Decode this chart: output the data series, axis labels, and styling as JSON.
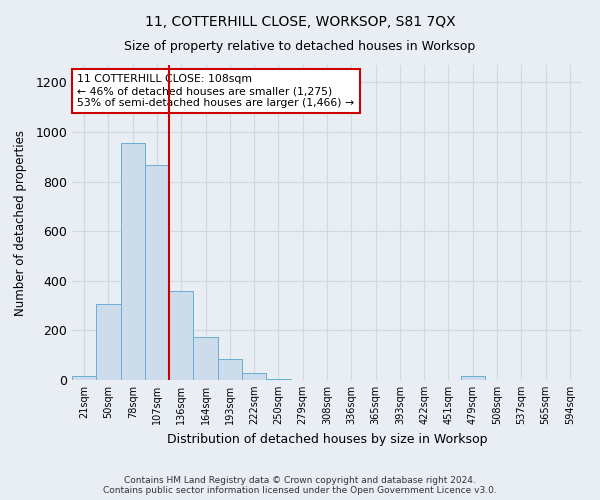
{
  "title": "11, COTTERHILL CLOSE, WORKSOP, S81 7QX",
  "subtitle": "Size of property relative to detached houses in Worksop",
  "xlabel": "Distribution of detached houses by size in Worksop",
  "ylabel": "Number of detached properties",
  "footer_line1": "Contains HM Land Registry data © Crown copyright and database right 2024.",
  "footer_line2": "Contains public sector information licensed under the Open Government Licence v3.0.",
  "bin_labels": [
    "21sqm",
    "50sqm",
    "78sqm",
    "107sqm",
    "136sqm",
    "164sqm",
    "193sqm",
    "222sqm",
    "250sqm",
    "279sqm",
    "308sqm",
    "336sqm",
    "365sqm",
    "393sqm",
    "422sqm",
    "451sqm",
    "479sqm",
    "508sqm",
    "537sqm",
    "565sqm",
    "594sqm"
  ],
  "bar_heights": [
    15,
    305,
    955,
    865,
    358,
    172,
    83,
    30,
    5,
    0,
    0,
    0,
    0,
    0,
    0,
    0,
    15,
    0,
    0,
    0,
    0
  ],
  "bar_color": "#ccdcea",
  "bar_edge_color": "#6aadd5",
  "grid_color": "#d0d8e0",
  "background_color": "#e8eef4",
  "red_line_bin": 3,
  "red_line_color": "#cc0000",
  "annotation_text": "11 COTTERHILL CLOSE: 108sqm\n← 46% of detached houses are smaller (1,275)\n53% of semi-detached houses are larger (1,466) →",
  "annotation_box_color": "#ffffff",
  "annotation_box_edge_color": "#cc0000",
  "ylim": [
    0,
    1270
  ],
  "yticks": [
    0,
    200,
    400,
    600,
    800,
    1000,
    1200
  ],
  "title_fontsize": 10,
  "subtitle_fontsize": 9
}
